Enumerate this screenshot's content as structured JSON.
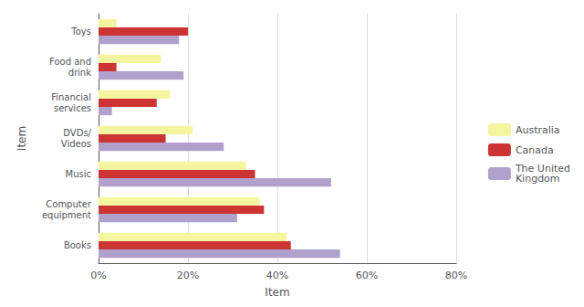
{
  "chart_data": {
    "type": "bar",
    "orientation": "horizontal",
    "categories": [
      "Books",
      "Computer\nequipment",
      "Music",
      "DVDs/\nVideos",
      "Financial\nservices",
      "Food and\ndrink",
      "Toys"
    ],
    "series": [
      {
        "name": "Australia",
        "color": "#f5f5a0",
        "values": [
          42,
          36,
          33,
          21,
          16,
          14,
          4
        ]
      },
      {
        "name": "Canada",
        "color": "#cc3333",
        "values": [
          43,
          37,
          35,
          15,
          13,
          4,
          20
        ]
      },
      {
        "name": "The United\nKingdom",
        "color": "#b0a0cc",
        "values": [
          54,
          31,
          52,
          28,
          3,
          19,
          18
        ]
      }
    ],
    "xlabel": "Item",
    "ylabel": "Item",
    "xlim": [
      0,
      80
    ],
    "xticks": [
      {
        "value": 0,
        "label": "0%"
      },
      {
        "value": 20,
        "label": "20%"
      },
      {
        "value": 40,
        "label": "40%"
      },
      {
        "value": 60,
        "label": "60%"
      },
      {
        "value": 80,
        "label": "80%"
      }
    ],
    "grid": true,
    "legend": "right"
  }
}
